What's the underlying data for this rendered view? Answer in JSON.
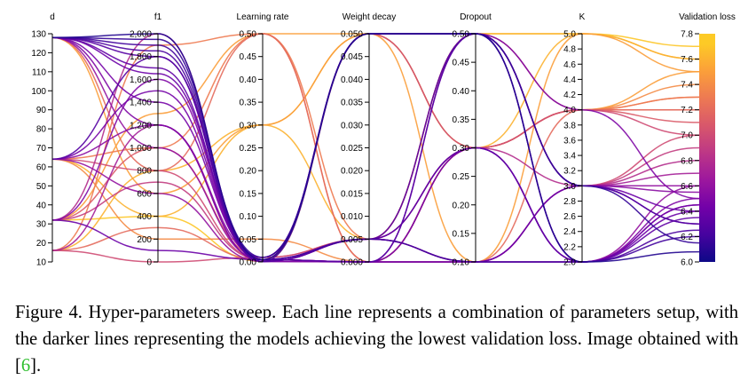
{
  "caption": {
    "label": "Figure 4.",
    "text_before_cite": " Hyper-parameters sweep. Each line represents a combination of parameters setup, with the darker lines representing the models achieving the lowest validation loss. Image obtained with [",
    "cite": "6",
    "text_after_cite": "]."
  },
  "chart_data": {
    "type": "parallel_coordinates",
    "title": "",
    "axes": [
      {
        "name": "d",
        "range": [
          10,
          130
        ],
        "ticks": [
          10,
          20,
          30,
          40,
          50,
          60,
          70,
          80,
          90,
          100,
          110,
          120,
          130
        ],
        "tick_labels": [
          "10",
          "20",
          "30",
          "40",
          "50",
          "60",
          "70",
          "80",
          "90",
          "100",
          "110",
          "120",
          "130"
        ],
        "tick_side": "right"
      },
      {
        "name": "f1",
        "range": [
          0,
          2000
        ],
        "ticks": [
          0,
          200,
          400,
          600,
          800,
          1000,
          1200,
          1400,
          1600,
          1800,
          2000
        ],
        "tick_labels": [
          "0",
          "200",
          "400",
          "600",
          "800",
          "1,000",
          "1,200",
          "1,400",
          "1,600",
          "1,800",
          "2,000"
        ],
        "tick_side": "left"
      },
      {
        "name": "Learning rate",
        "range": [
          0,
          0.5
        ],
        "ticks": [
          0,
          0.05,
          0.1,
          0.15,
          0.2,
          0.25,
          0.3,
          0.35,
          0.4,
          0.45,
          0.5
        ],
        "tick_labels": [
          "0.00",
          "0.05",
          "0.10",
          "0.15",
          "0.20",
          "0.25",
          "0.30",
          "0.35",
          "0.40",
          "0.45",
          "0.50"
        ],
        "tick_side": "left"
      },
      {
        "name": "Weight decay",
        "range": [
          0,
          0.05
        ],
        "ticks": [
          0,
          0.005,
          0.01,
          0.015,
          0.02,
          0.025,
          0.03,
          0.035,
          0.04,
          0.045,
          0.05
        ],
        "tick_labels": [
          "0.000",
          "0.005",
          "0.010",
          "0.015",
          "0.020",
          "0.025",
          "0.030",
          "0.035",
          "0.040",
          "0.045",
          "0.050"
        ],
        "tick_side": "left"
      },
      {
        "name": "Dropout",
        "range": [
          0.1,
          0.5
        ],
        "ticks": [
          0.1,
          0.15,
          0.2,
          0.25,
          0.3,
          0.35,
          0.4,
          0.45,
          0.5
        ],
        "tick_labels": [
          "0.10",
          "0.15",
          "0.20",
          "0.25",
          "0.30",
          "0.35",
          "0.40",
          "0.45",
          "0.50"
        ],
        "tick_side": "left"
      },
      {
        "name": "K",
        "range": [
          2,
          5
        ],
        "ticks": [
          2,
          2.2,
          2.4,
          2.6,
          2.8,
          3,
          3.2,
          3.4,
          3.6,
          3.8,
          4,
          4.2,
          4.4,
          4.6,
          4.8,
          5
        ],
        "tick_labels": [
          "2.0",
          "2.2",
          "2.4",
          "2.6",
          "2.8",
          "3.0",
          "3.2",
          "3.4",
          "3.6",
          "3.8",
          "4.0",
          "4.2",
          "4.4",
          "4.6",
          "4.8",
          "5.0"
        ],
        "tick_side": "left"
      },
      {
        "name": "Validation loss",
        "range": [
          6.0,
          7.8
        ],
        "ticks": [
          6.0,
          6.2,
          6.4,
          6.6,
          6.8,
          7.0,
          7.2,
          7.4,
          7.6,
          7.8
        ],
        "tick_labels": [
          "6.0",
          "6.2",
          "6.4",
          "6.6",
          "6.8",
          "7.0",
          "7.2",
          "7.4",
          "7.6",
          "7.8"
        ],
        "tick_side": "left"
      }
    ],
    "colorscale": {
      "name": "plasma",
      "range": [
        6.0,
        7.8
      ],
      "stops": [
        "#0d0887",
        "#46039f",
        "#7201a8",
        "#9c179e",
        "#bd3786",
        "#d8576b",
        "#ed7953",
        "#fb9f3a",
        "#fdca26",
        "#f0f921"
      ]
    },
    "runs": [
      {
        "d": 128,
        "f1": 2000,
        "lr": 0.005,
        "wd": 0.05,
        "dropout": 0.5,
        "k": 2.0,
        "loss": 6.08
      },
      {
        "d": 128,
        "f1": 1950,
        "lr": 0.01,
        "wd": 0.05,
        "dropout": 0.5,
        "k": 3.0,
        "loss": 6.15
      },
      {
        "d": 128,
        "f1": 1900,
        "lr": 0.005,
        "wd": 0.005,
        "dropout": 0.1,
        "k": 2.0,
        "loss": 6.2
      },
      {
        "d": 128,
        "f1": 1850,
        "lr": 0.001,
        "wd": 0.05,
        "dropout": 0.5,
        "k": 2.0,
        "loss": 6.25
      },
      {
        "d": 128,
        "f1": 1800,
        "lr": 0.005,
        "wd": 0.0,
        "dropout": 0.5,
        "k": 3.0,
        "loss": 6.3
      },
      {
        "d": 128,
        "f1": 1700,
        "lr": 0.001,
        "wd": 0.005,
        "dropout": 0.3,
        "k": 2.0,
        "loss": 6.35
      },
      {
        "d": 128,
        "f1": 1650,
        "lr": 0.005,
        "wd": 0.0,
        "dropout": 0.1,
        "k": 3.0,
        "loss": 6.4
      },
      {
        "d": 128,
        "f1": 1400,
        "lr": 0.01,
        "wd": 0.05,
        "dropout": 0.5,
        "k": 2.0,
        "loss": 6.45
      },
      {
        "d": 128,
        "f1": 1200,
        "lr": 0.001,
        "wd": 0.0,
        "dropout": 0.5,
        "k": 4.0,
        "loss": 6.5
      },
      {
        "d": 128,
        "f1": 1000,
        "lr": 0.005,
        "wd": 0.005,
        "dropout": 0.1,
        "k": 3.0,
        "loss": 6.6
      },
      {
        "d": 128,
        "f1": 800,
        "lr": 0.5,
        "wd": 0.0,
        "dropout": 0.3,
        "k": 4.0,
        "loss": 7.2
      },
      {
        "d": 128,
        "f1": 600,
        "lr": 0.3,
        "wd": 0.05,
        "dropout": 0.1,
        "k": 5.0,
        "loss": 7.5
      },
      {
        "d": 64,
        "f1": 1800,
        "lr": 0.001,
        "wd": 0.005,
        "dropout": 0.5,
        "k": 3.0,
        "loss": 6.3
      },
      {
        "d": 64,
        "f1": 1500,
        "lr": 0.005,
        "wd": 0.0,
        "dropout": 0.3,
        "k": 2.0,
        "loss": 6.45
      },
      {
        "d": 64,
        "f1": 1200,
        "lr": 0.01,
        "wd": 0.05,
        "dropout": 0.5,
        "k": 3.0,
        "loss": 6.55
      },
      {
        "d": 64,
        "f1": 1000,
        "lr": 0.5,
        "wd": 0.005,
        "dropout": 0.3,
        "k": 4.0,
        "loss": 7.3
      },
      {
        "d": 64,
        "f1": 800,
        "lr": 0.005,
        "wd": 0.05,
        "dropout": 0.3,
        "k": 4.0,
        "loss": 7.0
      },
      {
        "d": 64,
        "f1": 600,
        "lr": 0.001,
        "wd": 0.0,
        "dropout": 0.1,
        "k": 2.0,
        "loss": 6.6
      },
      {
        "d": 64,
        "f1": 400,
        "lr": 0.3,
        "wd": 0.005,
        "dropout": 0.5,
        "k": 5.0,
        "loss": 7.6
      },
      {
        "d": 64,
        "f1": 200,
        "lr": 0.05,
        "wd": 0.0,
        "dropout": 0.3,
        "k": 4.0,
        "loss": 7.4
      },
      {
        "d": 32,
        "f1": 2000,
        "lr": 0.005,
        "wd": 0.0,
        "dropout": 0.3,
        "k": 3.0,
        "loss": 6.8
      },
      {
        "d": 32,
        "f1": 1600,
        "lr": 0.001,
        "wd": 0.005,
        "dropout": 0.1,
        "k": 2.0,
        "loss": 6.5
      },
      {
        "d": 32,
        "f1": 1300,
        "lr": 0.5,
        "wd": 0.05,
        "dropout": 0.3,
        "k": 4.0,
        "loss": 7.5
      },
      {
        "d": 32,
        "f1": 1000,
        "lr": 0.01,
        "wd": 0.005,
        "dropout": 0.5,
        "k": 4.0,
        "loss": 7.1
      },
      {
        "d": 32,
        "f1": 700,
        "lr": 0.005,
        "wd": 0.0,
        "dropout": 0.1,
        "k": 3.0,
        "loss": 6.9
      },
      {
        "d": 32,
        "f1": 400,
        "lr": 0.001,
        "wd": 0.05,
        "dropout": 0.5,
        "k": 5.0,
        "loss": 7.7
      },
      {
        "d": 32,
        "f1": 100,
        "lr": 0.005,
        "wd": 0.005,
        "dropout": 0.3,
        "k": 2.0,
        "loss": 6.4
      },
      {
        "d": 16,
        "f1": 1900,
        "lr": 0.5,
        "wd": 0.0,
        "dropout": 0.3,
        "k": 4.0,
        "loss": 7.3
      },
      {
        "d": 16,
        "f1": 1200,
        "lr": 0.001,
        "wd": 0.005,
        "dropout": 0.1,
        "k": 3.0,
        "loss": 6.7
      },
      {
        "d": 16,
        "f1": 800,
        "lr": 0.3,
        "wd": 0.05,
        "dropout": 0.3,
        "k": 5.0,
        "loss": 7.6
      },
      {
        "d": 16,
        "f1": 300,
        "lr": 0.005,
        "wd": 0.0,
        "dropout": 0.1,
        "k": 4.0,
        "loss": 7.2
      },
      {
        "d": 16,
        "f1": 0,
        "lr": 0.01,
        "wd": 0.005,
        "dropout": 0.5,
        "k": 3.0,
        "loss": 7.0
      }
    ]
  }
}
